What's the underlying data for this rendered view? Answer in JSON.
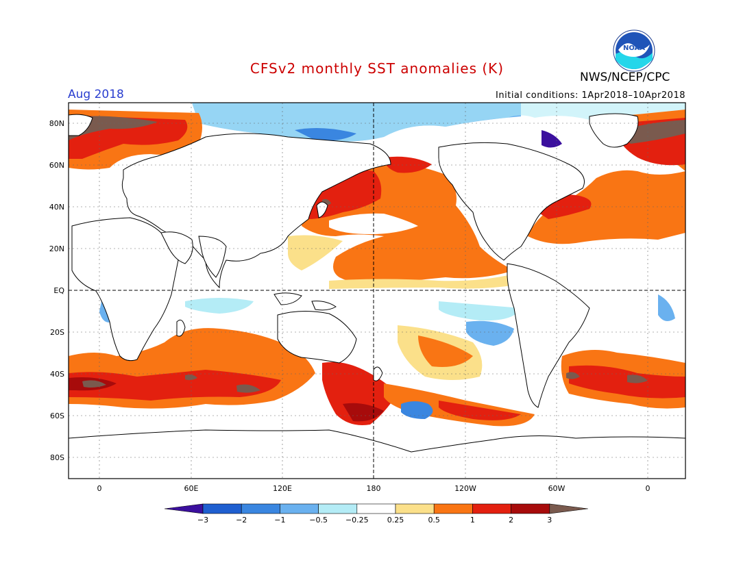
{
  "header": {
    "title": "CFSv2 monthly SST anomalies (K)",
    "title_color": "#cc0000",
    "period": "Aug 2018",
    "period_color": "#2a3ecf",
    "initial_conditions": "Initial conditions: 1Apr2018–10Apr2018",
    "org": "NWS/NCEP/CPC",
    "logo_text": "NOAA"
  },
  "map": {
    "projection": "cylindrical",
    "lon_range": [
      -20,
      382
    ],
    "lat_range": [
      -90,
      90
    ],
    "grid": true,
    "lat_labels": [
      "80N",
      "60N",
      "40N",
      "20N",
      "EQ",
      "20S",
      "40S",
      "60S",
      "80S"
    ],
    "lon_labels": [
      "0",
      "60E",
      "120E",
      "180",
      "120W",
      "60W",
      "0"
    ],
    "reference_lines": [
      "EQ",
      "180"
    ]
  },
  "colorbar": {
    "levels": [
      "-3",
      "-2",
      "-1",
      "-0.5",
      "-0.25",
      "0.25",
      "0.5",
      "1",
      "2",
      "3"
    ],
    "colors": [
      "#3b0f9e",
      "#1f5fd0",
      "#3a86e0",
      "#6ab1ef",
      "#b4ecf6",
      "#ffffff",
      "#fbe08a",
      "#f97514",
      "#e3200f",
      "#a70b0b",
      "#7a5a4e"
    ]
  }
}
